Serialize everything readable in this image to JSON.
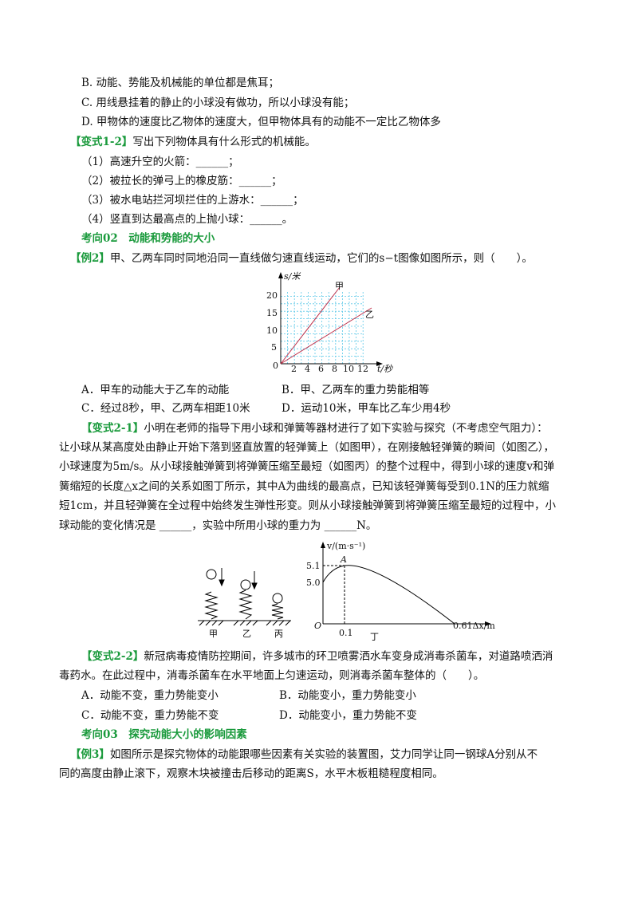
{
  "lines": [
    {
      "text": "B. 动能、势能及机械能的单位都是焦耳；"
    },
    {
      "text": "C. 用线悬挂着的静止的小球没有做功，所以小球没有能；"
    },
    {
      "text": "D. 甲物体的速度比乙物体的速度大，但甲物体具有的动能不一定比乙物体多"
    },
    {
      "tag": "【变式1-2】",
      "text": "写出下列物体具有什么形式的机械能。"
    },
    {
      "text": "（1）高速升空的火箭：______；"
    },
    {
      "text": "（2）被拉长的弹弓上的橡皮筋：______；"
    },
    {
      "text": "（3）被水电站拦河坝拦住的上游水：______；"
    },
    {
      "text": "（4）竖直到达最高点的上抛小球：______。"
    },
    {
      "heading": "考向02　动能和势能的大小"
    },
    {
      "tag": "【例2】",
      "text": "甲、乙两车同时同地沿同一直线做匀速直线运动，它们的s−t图像如图所示，则（　　）。"
    },
    {
      "text": "A．甲车的动能大于乙车的动能",
      "text2": "B．甲、乙两车的重力势能相等"
    },
    {
      "text": "C．经过8秒，甲、乙两车相距10米",
      "text2": "D．运动10米，甲车比乙车少用4秒"
    },
    {
      "tag": "【变式2-1】",
      "text": "小明在老师的指导下用小球和弹簧等器材进行了如下实验与探究（不考虑空气阻力）："
    },
    {
      "text": "让小球从某高度处由静止开始下落到竖直放置的轻弹簧上（如图甲），在刚接触轻弹簧的瞬间（如图乙），"
    },
    {
      "text": "小球速度为5m/s。从小球接触弹簧到将弹簧压缩至最短（如图丙）的整个过程中，得到小球的速度v和弹"
    },
    {
      "text": "簧缩短的长度△x之间的关系如图丁所示，其中A为曲线的最高点，已知该轻弹簧每受到0.1N的压力就缩"
    },
    {
      "text": "短1cm，并且轻弹簧在全过程中始终发生弹性形变。则从小球接触弹簧到将弹簧压缩至最短的过程中，小"
    },
    {
      "text": "球动能的变化情况是 ______，实验中所用小球的重力为 ______N。"
    },
    {
      "tag": "【变式2-2】",
      "text": "新冠病毒疫情防控期间，许多城市的环卫喷雾洒水车变身成消毒杀菌车，对道路喷洒消"
    },
    {
      "text": "毒药水。在此过程中，消毒杀菌车在水平地面上匀速运动，则消毒杀菌车整体的（　　）。"
    },
    {
      "text": "A．动能不变，重力势能变小",
      "text2": "B．动能变小，重力势能变小"
    },
    {
      "text": "C．动能不变，重力势能不变",
      "text2": "D．动能变小，重力势能不变"
    },
    {
      "heading": "考向03　探究动能大小的影响因素"
    },
    {
      "tag": "【例3】",
      "text": "如图所示是探究物体的动能跟哪些因素有关实验的装置图，艾力同学让同一钢球A分别从不"
    },
    {
      "text": "同的高度由静止滚下，观察木块被撞击后移动的距离S，水平木板粗糙程度相同。"
    }
  ],
  "figure_st": {
    "y_label": "s/米",
    "x_label": "t/秒",
    "origin": "0",
    "xticks": [
      "2",
      "4",
      "6",
      "8",
      "10",
      "12"
    ],
    "yticks": [
      "20",
      "15",
      "10",
      "5"
    ],
    "line1": "甲",
    "line2": "乙"
  },
  "figure_spring": {
    "labels": [
      "甲",
      "乙",
      "丙"
    ]
  },
  "figure_v": {
    "y_label": "v/(m·s⁻¹)",
    "origin": "O",
    "y1": "5.1",
    "y2": "5.0",
    "peak": "A",
    "x1": "0.1",
    "x2": "0.61Δx/m",
    "caption": "丁"
  }
}
